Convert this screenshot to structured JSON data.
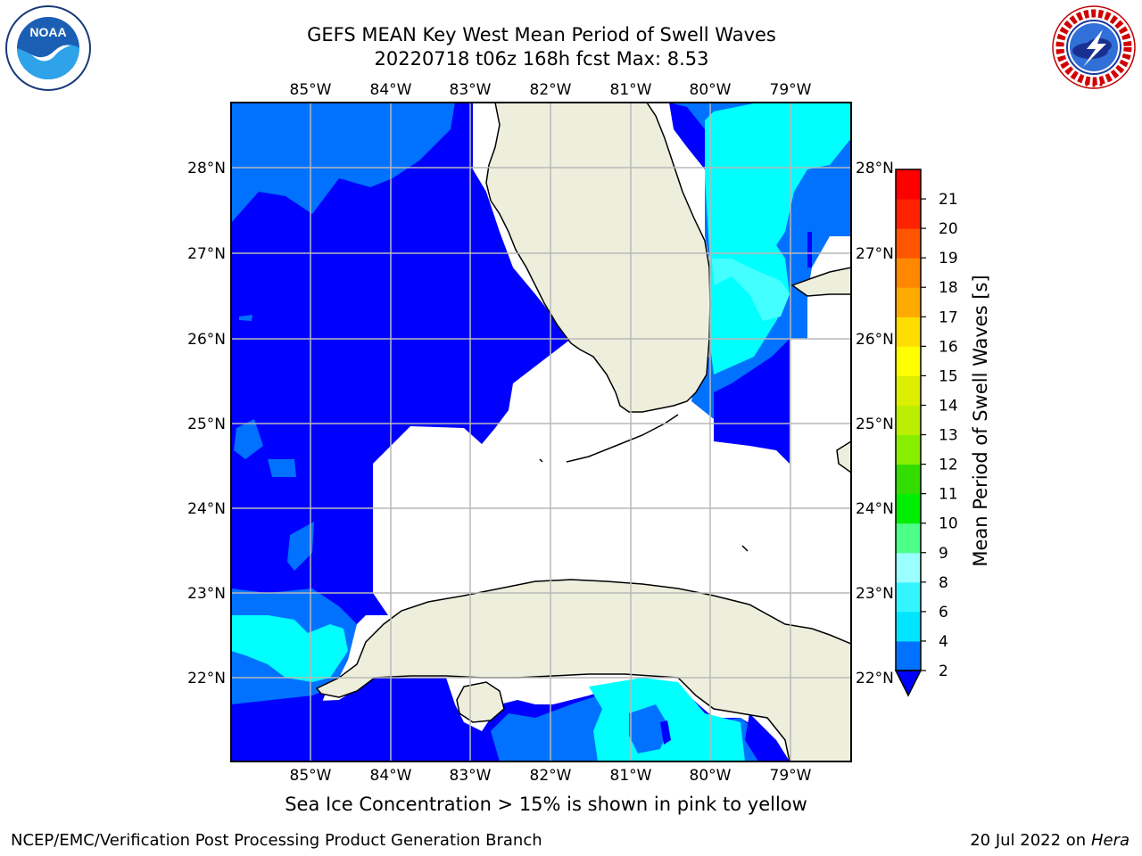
{
  "title_line1": "GEFS MEAN Key West Mean Period of Swell Waves",
  "title_line2": "20220718 t06z 168h fcst   Max: 8.53",
  "logos": {
    "left": "noaa-logo",
    "left_text": "NOAA",
    "right": "national-weather-service-logo"
  },
  "map": {
    "lon_labels": [
      "85°W",
      "84°W",
      "83°W",
      "82°W",
      "81°W",
      "80°W",
      "79°W"
    ],
    "lat_labels": [
      "28°N",
      "27°N",
      "26°N",
      "25°N",
      "24°N",
      "23°N",
      "22°N"
    ],
    "lon_range": [
      -86.0,
      -78.25
    ],
    "lat_range": [
      21.0,
      28.75
    ]
  },
  "colorbar": {
    "label": "Mean Period of Swell Waves [s]",
    "ticks": [
      "2",
      "4",
      "6",
      "8",
      "9",
      "10",
      "11",
      "12",
      "13",
      "14",
      "15",
      "16",
      "17",
      "18",
      "19",
      "20",
      "21"
    ],
    "colors": [
      "#0072ff",
      "#00e5ff",
      "#33f5ff",
      "#99ffff",
      "#4dff88",
      "#00ee00",
      "#33dd00",
      "#88ee00",
      "#bbee00",
      "#ddee00",
      "#ffff00",
      "#ffdd00",
      "#ffaa00",
      "#ff8800",
      "#ff5500",
      "#ff2200",
      "#ff0000"
    ],
    "under_color": "#0000ff"
  },
  "colors": {
    "deep_blue": "#0000ff",
    "mid_blue": "#0072ff",
    "cyan": "#00ffff",
    "light_cyan": "#44ffff",
    "land": "#eeeedd",
    "grid": "#b8b8b8"
  },
  "footer": {
    "sea_ice_note": "Sea Ice Concentration > 15% is shown in pink to yellow",
    "branch": "NCEP/EMC/Verification Post Processing Product Generation Branch",
    "date": "20 Jul 2022 on",
    "machine": "Hera"
  }
}
